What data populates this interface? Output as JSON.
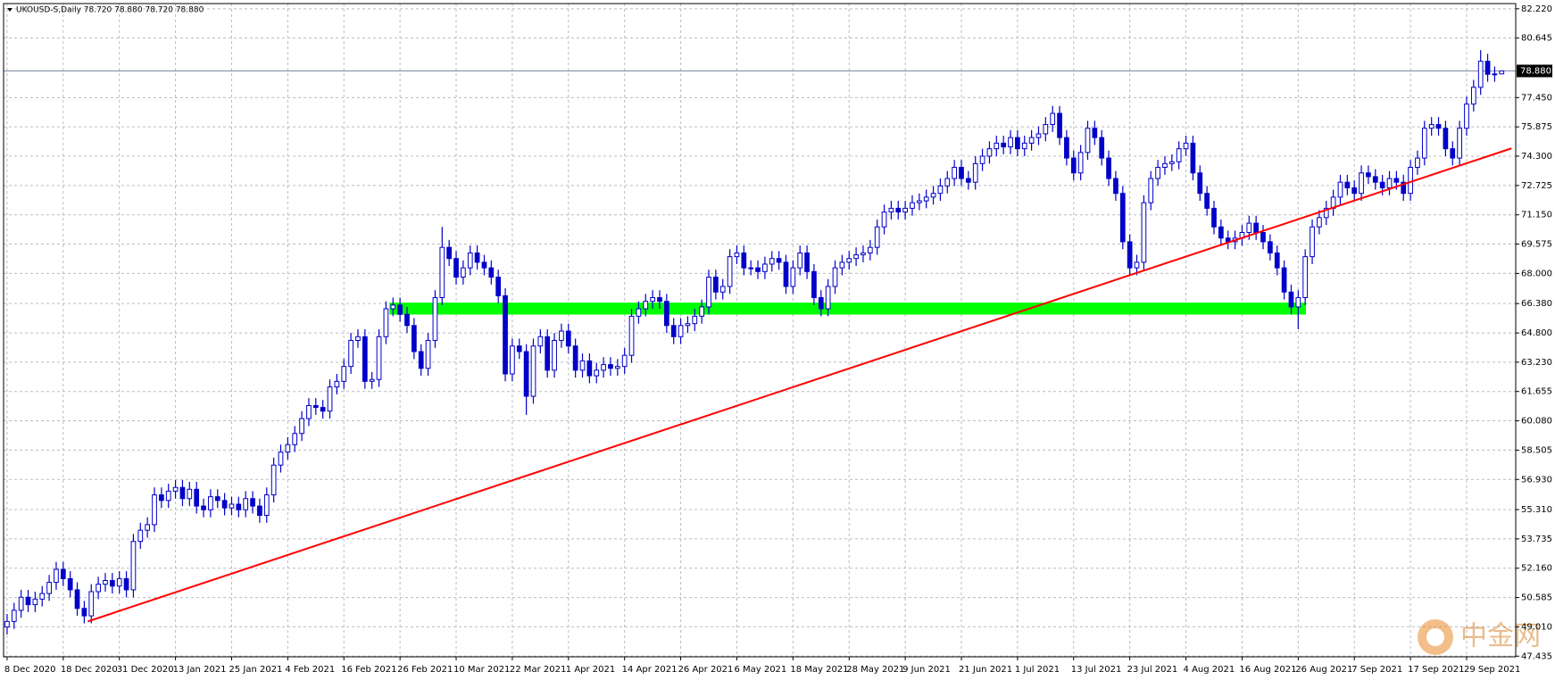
{
  "chart_data": {
    "type": "candlestick",
    "title": "UKOUSD-S,Daily  78.720 78.880 78.720 78.880",
    "categories": [
      "8 Dec 2020",
      null,
      null,
      null,
      null,
      null,
      null,
      null,
      "18 Dec 2020",
      null,
      null,
      null,
      null,
      null,
      null,
      null,
      "31 Dec 2020",
      null,
      null,
      null,
      null,
      null,
      null,
      null,
      "13 Jan 2021",
      null,
      null,
      null,
      null,
      null,
      null,
      null,
      "25 Jan 2021",
      null,
      null,
      null,
      null,
      null,
      null,
      null,
      "4 Feb 2021",
      null,
      null,
      null,
      null,
      null,
      null,
      null,
      "16 Feb 2021",
      null,
      null,
      null,
      null,
      null,
      null,
      null,
      "26 Feb 2021",
      null,
      null,
      null,
      null,
      null,
      null,
      null,
      "10 Mar 2021",
      null,
      null,
      null,
      null,
      null,
      null,
      null,
      "22 Mar 2021",
      null,
      null,
      null,
      null,
      null,
      null,
      null,
      "1 Apr 2021",
      null,
      null,
      null,
      null,
      null,
      null,
      null,
      "14 Apr 2021",
      null,
      null,
      null,
      null,
      null,
      null,
      null,
      "26 Apr 2021",
      null,
      null,
      null,
      null,
      null,
      null,
      null,
      "6 May 2021",
      null,
      null,
      null,
      null,
      null,
      null,
      null,
      "18 May 2021",
      null,
      null,
      null,
      null,
      null,
      null,
      null,
      "28 May 2021",
      null,
      null,
      null,
      null,
      null,
      null,
      null,
      "9 Jun 2021",
      null,
      null,
      null,
      null,
      null,
      null,
      null,
      "21 Jun 2021",
      null,
      null,
      null,
      null,
      null,
      null,
      null,
      "1 Jul 2021",
      null,
      null,
      null,
      null,
      null,
      null,
      null,
      "13 Jul 2021",
      null,
      null,
      null,
      null,
      null,
      null,
      null,
      "23 Jul 2021",
      null,
      null,
      null,
      null,
      null,
      null,
      null,
      "4 Aug 2021",
      null,
      null,
      null,
      null,
      null,
      null,
      null,
      "16 Aug 2021",
      null,
      null,
      null,
      null,
      null,
      null,
      null,
      "26 Aug 2021",
      null,
      null,
      null,
      null,
      null,
      null,
      null,
      "7 Sep 2021",
      null,
      null,
      null,
      null,
      null,
      null,
      null,
      "17 Sep 2021",
      null,
      null,
      null,
      null,
      null,
      null,
      null,
      "29 Sep 2021",
      null,
      null,
      null,
      null,
      null
    ],
    "open": [
      49.0,
      49.3,
      49.9,
      50.6,
      50.2,
      50.5,
      50.8,
      51.4,
      52.1,
      51.6,
      51.0,
      50.0,
      49.6,
      50.9,
      51.3,
      51.5,
      51.2,
      51.6,
      51.0,
      53.6,
      54.2,
      54.5,
      56.1,
      55.8,
      56.3,
      56.5,
      55.9,
      56.4,
      55.5,
      55.3,
      56.0,
      55.8,
      55.4,
      55.6,
      55.3,
      55.9,
      55.5,
      55.0,
      56.1,
      57.7,
      58.4,
      58.8,
      59.4,
      60.2,
      60.9,
      60.8,
      60.6,
      61.9,
      62.2,
      63.0,
      64.4,
      64.6,
      62.2,
      62.3,
      64.6,
      66.1,
      66.3,
      65.8,
      65.2,
      63.8,
      62.9,
      64.4,
      66.7,
      69.4,
      68.8,
      67.8,
      68.3,
      69.1,
      68.6,
      68.3,
      67.8,
      66.8,
      62.6,
      64.1,
      63.8,
      61.4,
      64.1,
      64.6,
      62.8,
      64.4,
      64.9,
      64.1,
      62.8,
      63.3,
      62.5,
      62.8,
      63.1,
      62.9,
      63.0,
      63.6,
      65.7,
      66.1,
      66.5,
      66.7,
      66.5,
      65.2,
      64.6,
      65.2,
      65.3,
      65.7,
      66.2,
      67.8,
      67.0,
      67.3,
      68.9,
      69.1,
      68.3,
      68.3,
      68.1,
      68.5,
      68.8,
      68.6,
      67.3,
      68.3,
      69.1,
      68.1,
      66.7,
      66.1,
      67.3,
      68.3,
      68.6,
      68.8,
      69.0,
      69.1,
      69.4,
      70.5,
      71.3,
      71.5,
      71.3,
      71.5,
      71.8,
      71.9,
      72.1,
      72.3,
      72.7,
      73.1,
      73.7,
      73.1,
      72.9,
      73.9,
      74.3,
      74.7,
      75.0,
      74.8,
      75.3,
      74.7,
      75.0,
      75.3,
      75.5,
      76.0,
      76.6,
      75.3,
      74.2,
      73.4,
      74.5,
      75.8,
      75.3,
      74.2,
      73.1,
      72.3,
      69.7,
      68.3,
      68.6,
      71.8,
      73.1,
      73.7,
      73.9,
      74.0,
      74.7,
      75.0,
      73.4,
      72.3,
      71.5,
      70.5,
      69.9,
      69.7,
      69.9,
      70.2,
      70.7,
      70.2,
      69.7,
      69.1,
      68.3,
      67.0,
      66.2,
      66.7,
      68.9,
      70.5,
      71.0,
      71.5,
      72.1,
      72.9,
      72.6,
      72.3,
      73.4,
      73.2,
      72.9,
      72.6,
      73.1,
      72.9,
      72.3,
      73.7,
      74.2,
      75.8,
      76.0,
      75.8,
      74.7,
      74.2,
      75.8,
      77.1,
      78.0,
      79.4,
      78.7,
      78.72
    ],
    "high": [
      49.7,
      50.3,
      51.0,
      51.0,
      50.9,
      51.2,
      51.8,
      52.5,
      52.5,
      52.0,
      51.4,
      50.4,
      51.3,
      51.7,
      51.9,
      51.9,
      52.0,
      52.0,
      54.0,
      54.6,
      54.9,
      56.5,
      56.5,
      56.7,
      56.9,
      56.9,
      56.8,
      56.8,
      55.9,
      56.4,
      56.4,
      56.2,
      56.0,
      56.0,
      56.3,
      56.3,
      55.9,
      56.5,
      58.1,
      58.8,
      59.2,
      59.8,
      60.6,
      61.3,
      61.3,
      61.2,
      62.3,
      62.6,
      63.4,
      64.8,
      65.0,
      65.0,
      62.7,
      65.0,
      66.5,
      66.7,
      66.7,
      66.2,
      65.6,
      64.2,
      64.8,
      67.1,
      70.5,
      69.8,
      69.2,
      68.7,
      69.5,
      69.5,
      69.0,
      68.7,
      68.2,
      67.2,
      64.5,
      64.5,
      64.2,
      64.5,
      65.0,
      65.0,
      64.8,
      65.3,
      65.3,
      64.5,
      63.7,
      63.7,
      63.2,
      63.5,
      63.5,
      63.4,
      64.0,
      66.1,
      66.5,
      66.9,
      67.1,
      67.1,
      66.9,
      65.6,
      65.6,
      65.7,
      66.1,
      66.6,
      68.2,
      68.2,
      67.7,
      69.3,
      69.5,
      69.5,
      68.7,
      68.7,
      68.9,
      69.2,
      69.2,
      69.0,
      68.7,
      69.5,
      69.5,
      68.5,
      67.1,
      67.7,
      68.7,
      69.0,
      69.2,
      69.4,
      69.5,
      69.8,
      70.9,
      71.7,
      71.9,
      71.9,
      71.9,
      72.2,
      72.3,
      72.5,
      72.7,
      73.1,
      73.5,
      74.1,
      74.1,
      73.5,
      74.3,
      74.7,
      75.1,
      75.4,
      75.4,
      75.7,
      75.7,
      75.4,
      75.7,
      75.9,
      76.4,
      77.0,
      77.0,
      75.7,
      74.6,
      74.9,
      76.2,
      76.2,
      75.7,
      74.6,
      73.5,
      72.7,
      70.1,
      69.0,
      72.2,
      73.5,
      74.1,
      74.3,
      74.4,
      75.1,
      75.4,
      75.4,
      73.8,
      72.7,
      71.9,
      70.9,
      70.3,
      70.3,
      70.6,
      71.1,
      71.1,
      70.6,
      70.1,
      69.5,
      68.7,
      67.4,
      67.1,
      69.3,
      70.9,
      71.4,
      71.9,
      72.5,
      73.3,
      73.3,
      73.0,
      73.8,
      73.8,
      73.6,
      73.3,
      73.5,
      73.5,
      73.3,
      74.1,
      74.6,
      76.2,
      76.4,
      76.4,
      76.2,
      75.1,
      76.2,
      77.5,
      78.4,
      80.0,
      79.8,
      79.12,
      78.88
    ],
    "low": [
      48.6,
      48.9,
      49.5,
      49.8,
      49.8,
      50.1,
      50.4,
      51.0,
      51.2,
      50.6,
      49.6,
      49.2,
      49.2,
      50.5,
      50.9,
      50.8,
      50.8,
      50.6,
      50.6,
      53.2,
      53.8,
      54.1,
      55.4,
      55.4,
      55.9,
      55.5,
      55.5,
      55.1,
      54.9,
      54.9,
      55.4,
      55.0,
      55.0,
      54.9,
      54.9,
      55.1,
      54.6,
      54.6,
      55.7,
      57.3,
      58.0,
      58.4,
      59.0,
      59.8,
      60.4,
      60.2,
      60.2,
      61.5,
      61.8,
      62.6,
      64.0,
      61.8,
      61.8,
      61.9,
      64.2,
      65.7,
      65.4,
      64.8,
      63.4,
      62.5,
      62.5,
      64.0,
      66.3,
      68.4,
      67.4,
      67.4,
      67.9,
      68.2,
      67.9,
      67.4,
      66.4,
      62.2,
      62.2,
      63.4,
      60.4,
      61.0,
      63.7,
      62.4,
      62.4,
      64.0,
      63.7,
      62.4,
      62.4,
      62.1,
      62.1,
      62.4,
      62.5,
      62.5,
      62.6,
      63.2,
      65.3,
      65.7,
      66.1,
      66.1,
      64.8,
      64.2,
      64.2,
      64.8,
      64.9,
      65.3,
      65.8,
      66.6,
      66.6,
      66.9,
      68.5,
      67.9,
      67.9,
      67.7,
      67.7,
      68.1,
      68.2,
      66.9,
      66.9,
      67.9,
      67.7,
      66.3,
      65.7,
      65.7,
      66.9,
      67.9,
      68.2,
      68.4,
      68.6,
      68.7,
      69.0,
      70.1,
      70.9,
      70.9,
      70.9,
      71.1,
      71.4,
      71.5,
      71.7,
      71.9,
      72.3,
      72.7,
      72.7,
      72.5,
      72.5,
      73.5,
      73.9,
      74.3,
      74.4,
      74.4,
      74.3,
      74.3,
      74.6,
      74.9,
      75.1,
      75.6,
      74.9,
      73.8,
      73.0,
      73.0,
      74.1,
      74.9,
      73.8,
      72.7,
      71.9,
      69.3,
      67.9,
      67.9,
      68.2,
      71.4,
      72.7,
      73.3,
      73.5,
      73.6,
      74.3,
      73.0,
      71.9,
      71.1,
      70.1,
      69.5,
      69.3,
      69.3,
      69.5,
      69.8,
      69.8,
      69.3,
      68.7,
      67.9,
      66.6,
      65.8,
      65.0,
      66.3,
      68.5,
      70.1,
      70.6,
      71.1,
      71.7,
      72.2,
      71.9,
      71.9,
      72.8,
      72.5,
      72.2,
      72.2,
      72.5,
      71.9,
      71.9,
      73.3,
      73.8,
      75.4,
      75.4,
      74.3,
      73.8,
      73.8,
      75.4,
      76.7,
      77.6,
      78.3,
      78.3,
      78.72
    ],
    "close": [
      49.3,
      49.9,
      50.6,
      50.2,
      50.5,
      50.8,
      51.4,
      52.1,
      51.6,
      51.0,
      50.0,
      49.6,
      50.9,
      51.3,
      51.5,
      51.2,
      51.6,
      51.0,
      53.6,
      54.2,
      54.5,
      56.1,
      55.8,
      56.3,
      56.5,
      55.9,
      56.4,
      55.5,
      55.3,
      56.0,
      55.8,
      55.4,
      55.6,
      55.3,
      55.9,
      55.5,
      55.0,
      56.1,
      57.7,
      58.4,
      58.8,
      59.4,
      60.2,
      60.9,
      60.8,
      60.6,
      61.9,
      62.2,
      63.0,
      64.4,
      64.6,
      62.2,
      62.3,
      64.6,
      66.1,
      66.3,
      65.8,
      65.2,
      63.8,
      62.9,
      64.4,
      66.7,
      69.4,
      68.8,
      67.8,
      68.3,
      69.1,
      68.6,
      68.3,
      67.8,
      66.8,
      62.6,
      64.1,
      63.8,
      61.4,
      64.1,
      64.6,
      62.8,
      64.4,
      64.9,
      64.1,
      62.8,
      63.3,
      62.5,
      62.8,
      63.1,
      62.9,
      63.0,
      63.6,
      65.7,
      66.1,
      66.5,
      66.7,
      66.5,
      65.2,
      64.6,
      65.2,
      65.3,
      65.7,
      66.2,
      67.8,
      67.0,
      67.3,
      68.9,
      69.1,
      68.3,
      68.3,
      68.1,
      68.5,
      68.8,
      68.6,
      67.3,
      68.3,
      69.1,
      68.1,
      66.7,
      66.1,
      67.3,
      68.3,
      68.6,
      68.8,
      69.0,
      69.1,
      69.4,
      70.5,
      71.3,
      71.5,
      71.3,
      71.5,
      71.8,
      71.9,
      72.1,
      72.3,
      72.7,
      73.1,
      73.7,
      73.1,
      72.9,
      73.9,
      74.3,
      74.7,
      75.0,
      74.8,
      75.3,
      74.7,
      75.0,
      75.3,
      75.5,
      76.0,
      76.6,
      75.3,
      74.2,
      73.4,
      74.5,
      75.8,
      75.3,
      74.2,
      73.1,
      72.3,
      69.7,
      68.3,
      68.6,
      71.8,
      73.1,
      73.7,
      73.9,
      74.0,
      74.7,
      75.0,
      73.4,
      72.3,
      71.5,
      70.5,
      69.9,
      69.7,
      69.9,
      70.2,
      70.7,
      70.2,
      69.7,
      69.1,
      68.3,
      67.0,
      66.2,
      66.7,
      68.9,
      70.5,
      71.0,
      71.5,
      72.1,
      72.9,
      72.6,
      72.3,
      73.4,
      73.2,
      72.9,
      72.6,
      73.1,
      72.9,
      72.3,
      73.7,
      74.2,
      75.8,
      76.0,
      75.8,
      74.7,
      74.2,
      75.8,
      77.1,
      78.0,
      79.4,
      78.7,
      78.72,
      78.88
    ],
    "color": "#0000c8",
    "ylim": [
      47.4,
      82.5
    ],
    "yticks": [
      {
        "value": 82.22,
        "label": "82.220"
      },
      {
        "value": 80.645,
        "label": "80.645"
      },
      {
        "value": 77.45,
        "label": "77.450"
      },
      {
        "value": 75.875,
        "label": "75.875"
      },
      {
        "value": 74.3,
        "label": "74.300"
      },
      {
        "value": 72.725,
        "label": "72.725"
      },
      {
        "value": 71.15,
        "label": "71.150"
      },
      {
        "value": 69.575,
        "label": "69.575"
      },
      {
        "value": 68.0,
        "label": "68.000"
      },
      {
        "value": 66.38,
        "label": "66.380"
      },
      {
        "value": 64.8,
        "label": "64.800"
      },
      {
        "value": 63.23,
        "label": "63.230"
      },
      {
        "value": 61.655,
        "label": "61.655"
      },
      {
        "value": 60.08,
        "label": "60.080"
      },
      {
        "value": 58.505,
        "label": "58.505"
      },
      {
        "value": 56.93,
        "label": "56.930"
      },
      {
        "value": 55.31,
        "label": "55.310"
      },
      {
        "value": 53.735,
        "label": "53.735"
      },
      {
        "value": 52.16,
        "label": "52.160"
      },
      {
        "value": 50.585,
        "label": "50.585"
      },
      {
        "value": 49.01,
        "label": "49.010"
      },
      {
        "value": 47.435,
        "label": "47.435"
      }
    ],
    "grid": true,
    "current_price": {
      "value": 78.88,
      "label": "78.880"
    },
    "zone": {
      "x": [
        54.5,
        185.1
      ],
      "y": [
        65.79,
        66.43
      ],
      "color": "#00ff00"
    },
    "trendline": {
      "x": [
        11.5,
        214.4
      ],
      "y": [
        49.3,
        74.72
      ],
      "color": "#ff0000"
    },
    "watermark": "中金网"
  }
}
